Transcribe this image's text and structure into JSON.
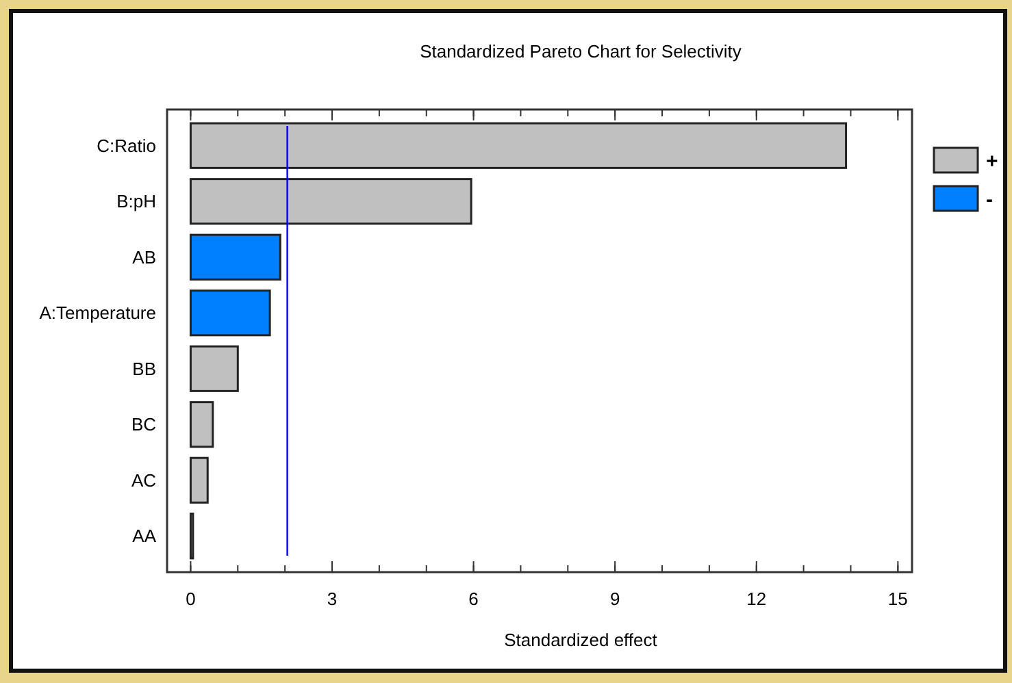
{
  "chart_data": {
    "type": "bar",
    "orientation": "horizontal",
    "title": "Standardized Pareto Chart for Selectivity",
    "xlabel": "Standardized effect",
    "categories": [
      "C:Ratio",
      "B:pH",
      "AB",
      "A:Temperature",
      "BB",
      "BC",
      "AC",
      "AA"
    ],
    "series": [
      {
        "name": "+",
        "color": "#c0c0c0",
        "values": [
          13.9,
          5.95,
          null,
          null,
          1.0,
          0.47,
          0.36,
          0.05
        ]
      },
      {
        "name": "-",
        "color": "#0080ff",
        "values": [
          null,
          null,
          1.9,
          1.68,
          null,
          null,
          null,
          null
        ]
      }
    ],
    "xlim": [
      -0.5,
      15.3
    ],
    "xticks": [
      0,
      3,
      6,
      9,
      12,
      15
    ],
    "ref_lines": [
      {
        "axis": "x",
        "value": 2.05,
        "color": "#0000ff"
      }
    ],
    "legend": "right",
    "grid": false
  }
}
